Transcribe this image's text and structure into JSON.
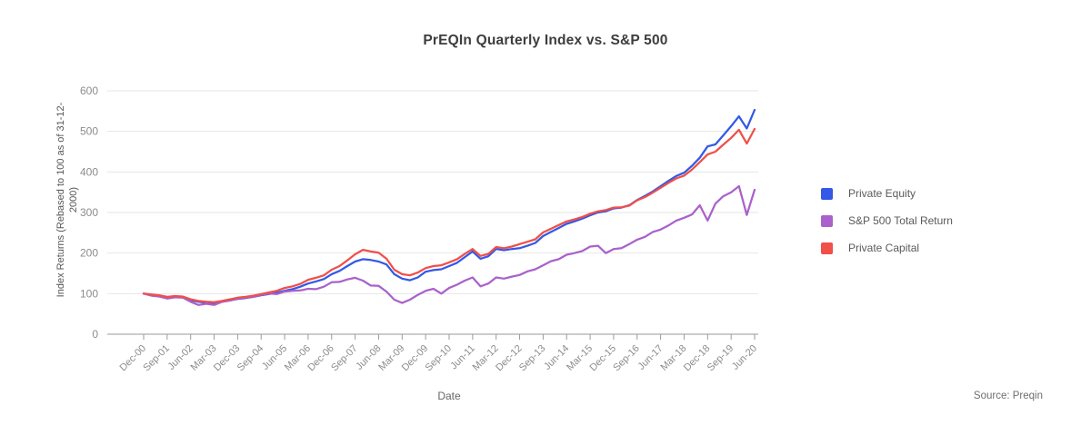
{
  "chart_data": {
    "type": "line",
    "title": "PrEQIn Quarterly Index vs. S&P 500",
    "xlabel": "Date",
    "ylabel": "Index Returns (Rebased to 100 as of 31-12-2000)",
    "source": "Source: Preqin",
    "frequency": "quarterly",
    "ylim": [
      0,
      600
    ],
    "y_ticks": [
      0,
      100,
      200,
      300,
      400,
      500,
      600
    ],
    "x_tick_every": 3,
    "x_tick_labels": [
      "Dec-00",
      "Sep-01",
      "Jun-02",
      "Mar-03",
      "Dec-03",
      "Sep-04",
      "Jun-05",
      "Mar-06",
      "Dec-06",
      "Sep-07",
      "Jun-08",
      "Mar-09",
      "Dec-09",
      "Sep-10",
      "Jun-11",
      "Mar-12",
      "Dec-12",
      "Sep-13",
      "Jun-14",
      "Mar-15",
      "Dec-15",
      "Sep-16",
      "Jun-17",
      "Mar-18",
      "Dec-18",
      "Sep-19",
      "Jun-20"
    ],
    "grid": "horizontal",
    "legend_position": "right",
    "series": [
      {
        "name": "Private Equity",
        "color": "#3359e6",
        "values": [
          100,
          97,
          95,
          90,
          92,
          91,
          84,
          80,
          78,
          77,
          80,
          83,
          87,
          89,
          92,
          96,
          99,
          102,
          107,
          111,
          117,
          125,
          130,
          136,
          148,
          156,
          168,
          179,
          185,
          183,
          179,
          172,
          148,
          137,
          133,
          140,
          154,
          158,
          160,
          168,
          176,
          190,
          204,
          186,
          192,
          210,
          207,
          210,
          212,
          218,
          225,
          242,
          252,
          262,
          272,
          278,
          285,
          293,
          300,
          303,
          310,
          312,
          318,
          331,
          341,
          352,
          365,
          378,
          390,
          398,
          415,
          435,
          463,
          468,
          490,
          513,
          537,
          507,
          553
        ]
      },
      {
        "name": "S&P 500 Total Return",
        "color": "#aa61cb",
        "values": [
          100,
          95,
          93,
          88,
          91,
          90,
          80,
          72,
          75,
          72,
          80,
          83,
          88,
          90,
          92,
          97,
          100,
          99,
          105,
          107,
          108,
          112,
          111,
          117,
          128,
          129,
          135,
          139,
          132,
          120,
          119,
          105,
          85,
          77,
          85,
          97,
          107,
          112,
          100,
          114,
          122,
          132,
          140,
          118,
          125,
          140,
          137,
          142,
          146,
          155,
          160,
          170,
          180,
          185,
          196,
          200,
          205,
          216,
          218,
          200,
          210,
          212,
          222,
          233,
          240,
          252,
          258,
          268,
          280,
          287,
          295,
          318,
          280,
          322,
          340,
          350,
          365,
          294,
          356
        ]
      },
      {
        "name": "Private Capital",
        "color": "#f04f4a",
        "values": [
          100,
          98,
          96,
          92,
          94,
          93,
          86,
          82,
          80,
          79,
          82,
          86,
          90,
          92,
          95,
          99,
          103,
          107,
          114,
          118,
          124,
          134,
          139,
          145,
          159,
          168,
          182,
          197,
          208,
          204,
          201,
          186,
          159,
          148,
          145,
          152,
          163,
          168,
          170,
          177,
          185,
          198,
          210,
          193,
          198,
          215,
          212,
          216,
          222,
          228,
          234,
          251,
          260,
          269,
          278,
          283,
          289,
          297,
          303,
          306,
          312,
          313,
          317,
          330,
          338,
          349,
          361,
          373,
          384,
          391,
          406,
          424,
          443,
          450,
          467,
          484,
          504,
          470,
          506
        ]
      }
    ]
  }
}
